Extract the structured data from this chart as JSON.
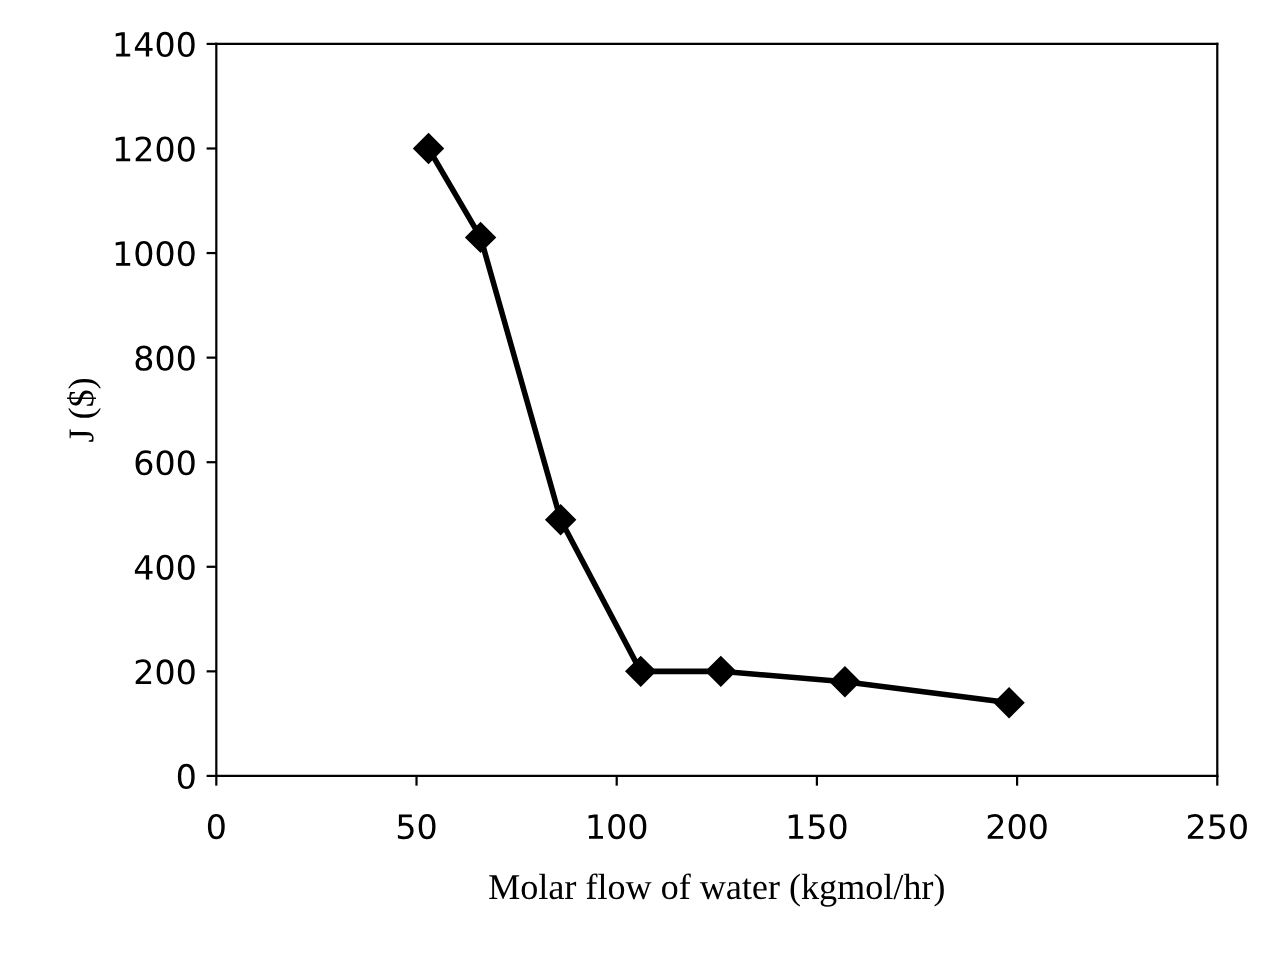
{
  "chart_data": {
    "type": "line",
    "xlabel": "Molar flow of water (kgmol/hr)",
    "ylabel": "J ($)",
    "x": [
      53,
      66,
      86,
      106,
      126,
      157,
      198
    ],
    "series": [
      {
        "color": "#000000",
        "values": [
          1200,
          1030,
          490,
          200,
          200,
          180,
          140
        ]
      }
    ],
    "xlim": [
      0,
      250
    ],
    "xticks": [
      0,
      50,
      100,
      150,
      200,
      250
    ],
    "ylim": [
      0,
      1400
    ],
    "yticks": [
      0,
      200,
      400,
      600,
      800,
      1000,
      1200,
      1400
    ],
    "marker": "diamond",
    "line_style": "solid",
    "grid": false,
    "legend": false
  }
}
